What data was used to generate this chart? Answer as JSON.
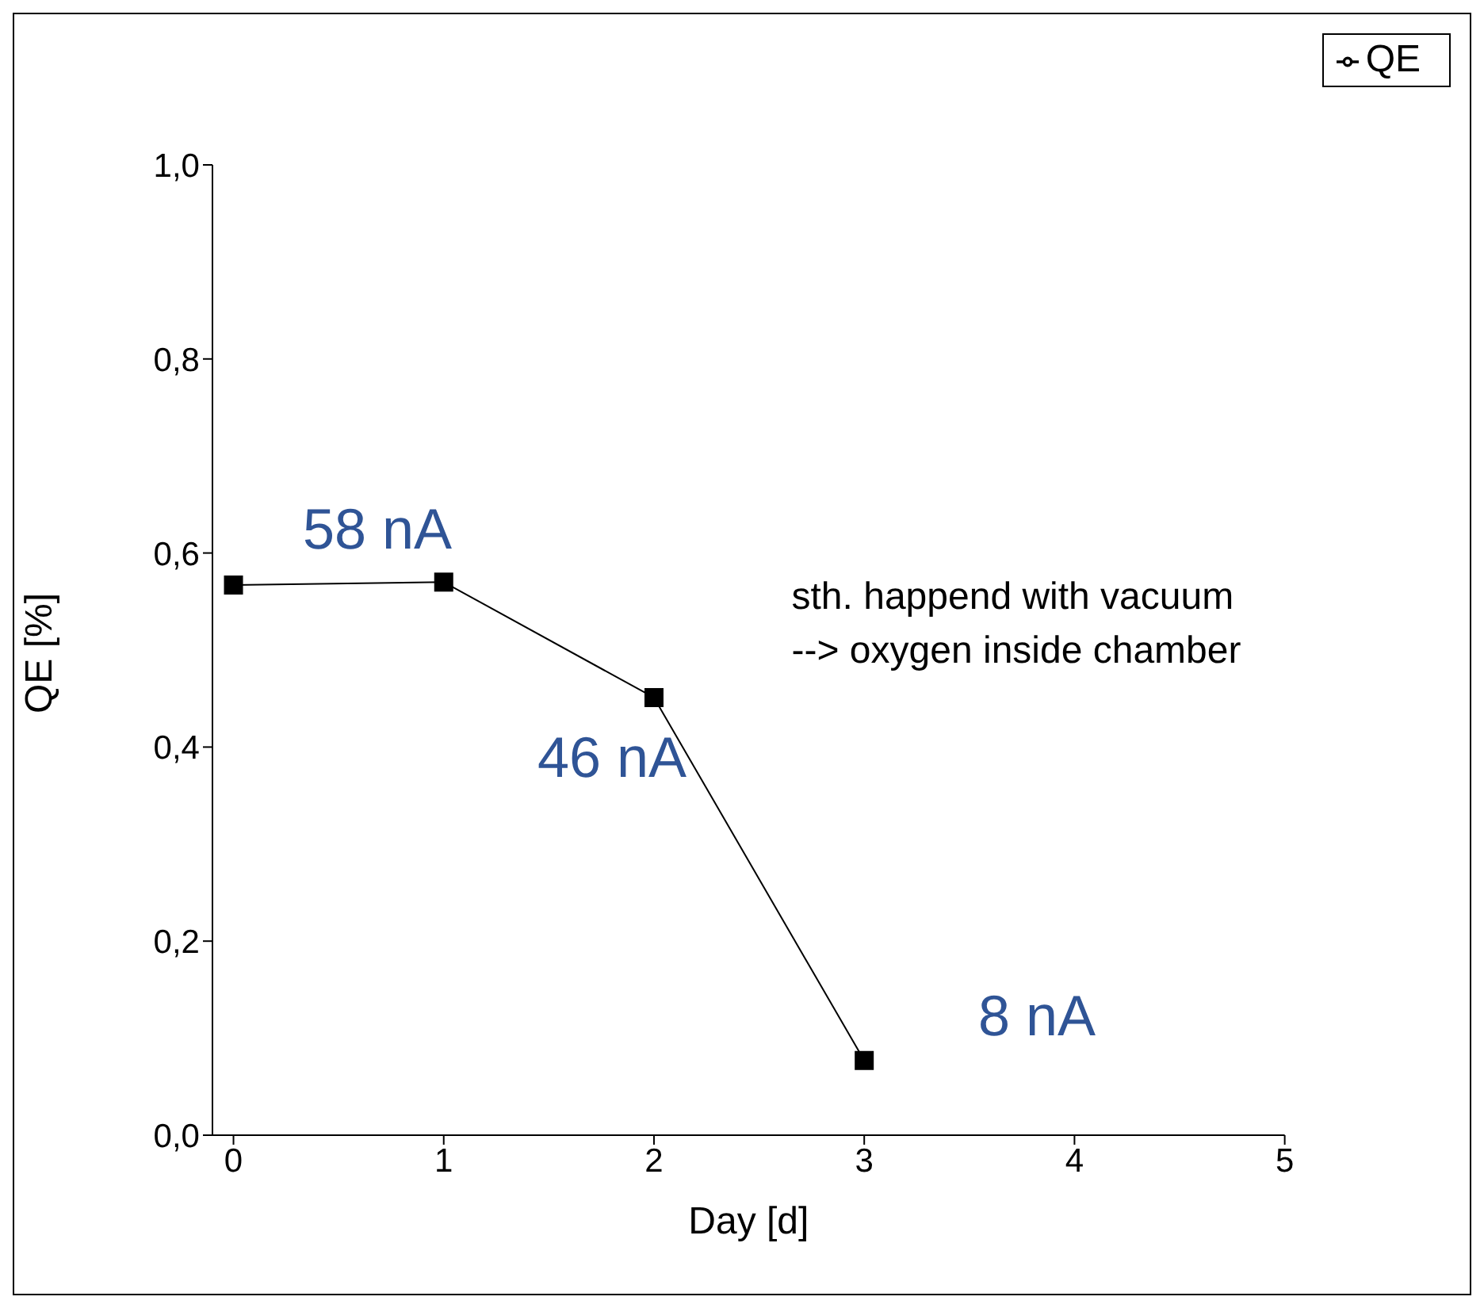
{
  "chart_data": {
    "type": "line",
    "xlabel": "Day [d]",
    "ylabel": "QE [%]",
    "x": [
      0,
      1,
      2,
      3
    ],
    "series": [
      {
        "name": "QE",
        "color": "#000000",
        "values": [
          0.567,
          0.57,
          0.451,
          0.077
        ]
      }
    ],
    "xlim": [
      -0.1,
      5
    ],
    "xticks": [
      0,
      1,
      2,
      3,
      4,
      5
    ],
    "ylim": [
      0,
      1
    ],
    "yticks": [
      {
        "value": 0,
        "label": "0,0"
      },
      {
        "value": 0.2,
        "label": "0,2"
      },
      {
        "value": 0.4,
        "label": "0,4"
      },
      {
        "value": 0.6,
        "label": "0,6"
      },
      {
        "value": 0.8,
        "label": "0,8"
      },
      {
        "value": 1,
        "label": "1,0"
      }
    ],
    "grid": false,
    "legend": "top right",
    "marker": "square",
    "line_style": "solid",
    "annotations": [
      "58 nA",
      "46 nA",
      "8 nA",
      "sth. happend with vacuum\n--> oxygen inside chamber"
    ]
  }
}
